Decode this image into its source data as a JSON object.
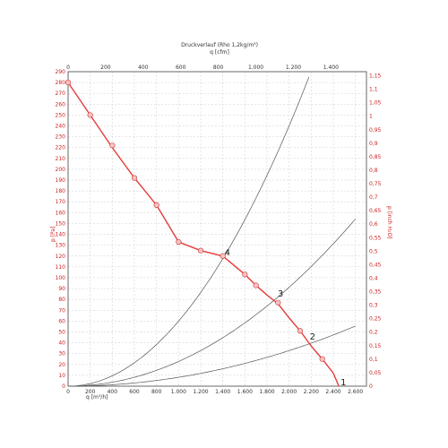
{
  "chart_data": {
    "type": "line",
    "title": "Druckverlauf (Rho 1,2kg/m³)",
    "x_top_label": "q [cfm]",
    "x_top_ticks": [
      "0",
      "200",
      "400",
      "600",
      "800",
      "1.000",
      "1.200",
      "1.400"
    ],
    "x_top_values": [
      0,
      200,
      400,
      600,
      800,
      1000,
      1200,
      1400
    ],
    "xlabel": "q [m³/h]",
    "x_ticks": [
      "0",
      "200",
      "400",
      "600",
      "800",
      "1.000",
      "1.200",
      "1.400",
      "1.600",
      "1.800",
      "2.000",
      "2.200",
      "2.400",
      "2.600"
    ],
    "xlim": [
      0,
      2700
    ],
    "ylabel_left": "p [Pa]",
    "y_left_ticks": [
      "0",
      "10",
      "20",
      "30",
      "40",
      "50",
      "60",
      "70",
      "80",
      "90",
      "100",
      "110",
      "120",
      "130",
      "140",
      "150",
      "160",
      "170",
      "180",
      "190",
      "200",
      "210",
      "220",
      "230",
      "240",
      "250",
      "260",
      "270",
      "280",
      "290"
    ],
    "ylim_left": [
      0,
      290
    ],
    "ylabel_right": "p [inch H₂O]",
    "y_right_ticks": [
      "0",
      "0,05",
      "0,1",
      "0,15",
      "0,2",
      "0,25",
      "0,3",
      "0,35",
      "0,4",
      "0,45",
      "0,5",
      "0,55",
      "0,6",
      "0,65",
      "0,7",
      "0,75",
      "0,8",
      "0,85",
      "0,9",
      "0,95",
      "1",
      "1,05",
      "1,1",
      "1,15"
    ],
    "ylim_right": [
      0,
      1.165
    ],
    "grid": true,
    "fan_curve": {
      "x": [
        0,
        200,
        400,
        600,
        800,
        1000,
        1200,
        1400,
        1600,
        1700,
        1800,
        1900,
        2000,
        2100,
        2200,
        2300,
        2400,
        2450
      ],
      "y": [
        280,
        250,
        220,
        192,
        167,
        133,
        125,
        120,
        103,
        93,
        84,
        76,
        63,
        51,
        37,
        25,
        12,
        0
      ]
    },
    "fan_markers": {
      "x": [
        0,
        200,
        400,
        600,
        800,
        1000,
        1200,
        1400,
        1600,
        1700,
        1900,
        2100,
        2300
      ],
      "y": [
        280,
        250,
        222,
        192,
        167,
        133,
        125,
        120,
        103,
        93,
        77,
        51,
        25
      ]
    },
    "system_curves": [
      {
        "k": 6e-05,
        "x_max": 2180
      },
      {
        "k": 2.28e-05,
        "x_max": 2600
      },
      {
        "k": 8.2e-06,
        "x_max": 2600
      }
    ],
    "operating_points": [
      {
        "label": "1",
        "x": 2450,
        "y": 0
      },
      {
        "label": "2",
        "x": 2170,
        "y": 42
      },
      {
        "label": "3",
        "x": 1880,
        "y": 82
      },
      {
        "label": "4",
        "x": 1400,
        "y": 120
      }
    ],
    "colors": {
      "fan_curve": "#e53b3b",
      "markers_fill": "#f5c2c2",
      "system_curves": "#555555",
      "right_axis": "#cc2222",
      "grid": "#cccccc"
    }
  }
}
